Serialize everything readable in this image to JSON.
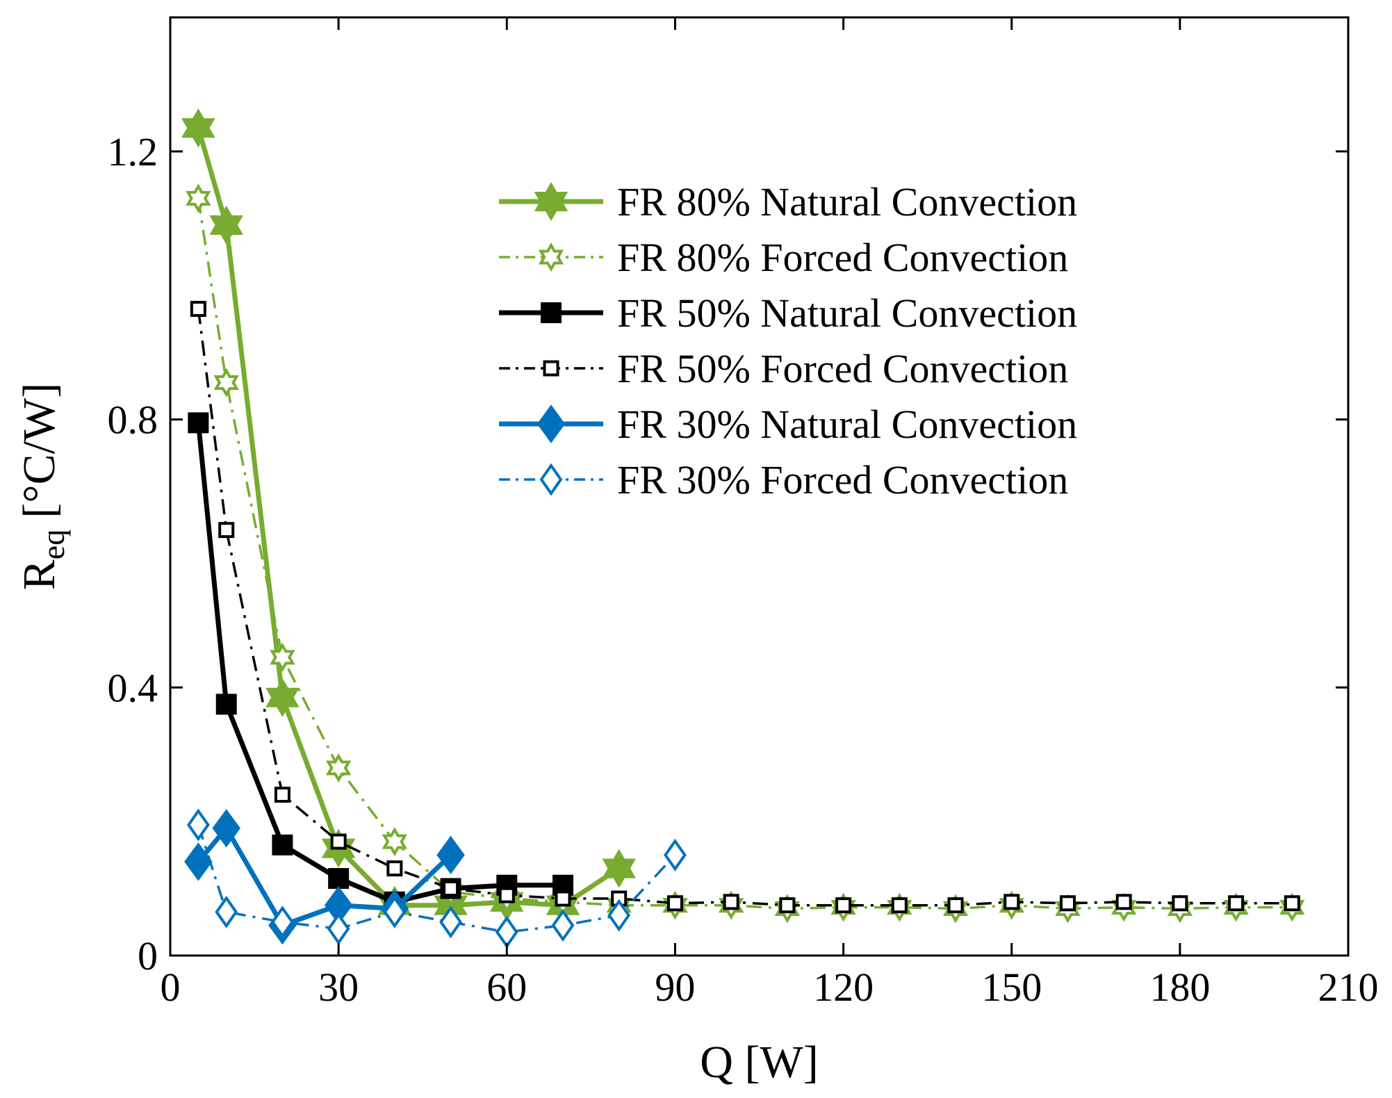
{
  "chart_data": {
    "type": "line",
    "xlabel": "Q [W]",
    "ylabel": {
      "main": "R",
      "sub": "eq",
      "unit": "[°C/W]"
    },
    "xlim": [
      0,
      210
    ],
    "ylim": [
      0,
      1.4
    ],
    "xticks": [
      0,
      30,
      60,
      90,
      120,
      150,
      180,
      210
    ],
    "xtick_labels": [
      "0",
      "30",
      "60",
      "90",
      "120",
      "150",
      "180",
      "210"
    ],
    "yticks": [
      0,
      0.4,
      0.8,
      1.2
    ],
    "ytick_labels": [
      "0",
      "0.4",
      "0.8",
      "1.2"
    ],
    "grid": false,
    "legend_position": "top-right",
    "colors": {
      "green": "#77ac30",
      "black": "#000000",
      "blue": "#0072bd"
    },
    "series": [
      {
        "name": "FR 80% Natural Convection",
        "color": "#77ac30",
        "line": "solid",
        "marker": "star-filled",
        "x": [
          5,
          10,
          20,
          30,
          40,
          50,
          60,
          70,
          80
        ],
        "y": [
          1.235,
          1.09,
          0.385,
          0.16,
          0.075,
          0.075,
          0.08,
          0.075,
          0.13
        ]
      },
      {
        "name": "FR 80% Forced Convection",
        "color": "#77ac30",
        "line": "dashdot",
        "marker": "star-open",
        "x": [
          5,
          10,
          20,
          30,
          40,
          50,
          60,
          70,
          80,
          90,
          100,
          110,
          120,
          130,
          140,
          150,
          160,
          170,
          180,
          190,
          200
        ],
        "y": [
          1.13,
          0.855,
          0.445,
          0.28,
          0.17,
          0.095,
          0.085,
          0.08,
          0.075,
          0.075,
          0.075,
          0.07,
          0.072,
          0.072,
          0.07,
          0.075,
          0.07,
          0.072,
          0.07,
          0.072,
          0.072
        ]
      },
      {
        "name": "FR 50% Natural Convection",
        "color": "#000000",
        "line": "solid",
        "marker": "square-filled",
        "x": [
          5,
          10,
          20,
          30,
          40,
          50,
          60,
          70
        ],
        "y": [
          0.795,
          0.375,
          0.165,
          0.115,
          0.08,
          0.1,
          0.105,
          0.105
        ]
      },
      {
        "name": "FR 50% Forced Convection",
        "color": "#000000",
        "line": "dashdot",
        "marker": "square-open",
        "x": [
          5,
          10,
          20,
          30,
          40,
          50,
          60,
          70,
          80,
          90,
          100,
          110,
          120,
          130,
          140,
          150,
          160,
          170,
          180,
          190,
          200
        ],
        "y": [
          0.965,
          0.635,
          0.24,
          0.17,
          0.13,
          0.1,
          0.09,
          0.085,
          0.085,
          0.078,
          0.08,
          0.075,
          0.075,
          0.075,
          0.075,
          0.08,
          0.078,
          0.08,
          0.078,
          0.078,
          0.078
        ]
      },
      {
        "name": "FR 30% Natural Convection",
        "color": "#0072bd",
        "line": "solid",
        "marker": "diamond-filled",
        "x": [
          5,
          10,
          20,
          30,
          40,
          50
        ],
        "y": [
          0.14,
          0.19,
          0.045,
          0.075,
          0.07,
          0.15
        ]
      },
      {
        "name": "FR 30% Forced Convection",
        "color": "#0072bd",
        "line": "dashdot",
        "marker": "diamond-open",
        "x": [
          5,
          10,
          20,
          30,
          40,
          50,
          60,
          70,
          80,
          90
        ],
        "y": [
          0.195,
          0.065,
          0.05,
          0.04,
          0.065,
          0.05,
          0.035,
          0.045,
          0.06,
          0.15
        ]
      }
    ]
  }
}
